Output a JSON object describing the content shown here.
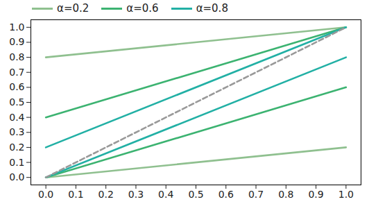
{
  "chart_data": {
    "type": "line",
    "x": [
      0,
      1
    ],
    "series": [
      {
        "name": "α=0.2",
        "color": "#8fc08f",
        "values": [
          0.8,
          1.0
        ]
      },
      {
        "name": "α=0.2",
        "color": "#8fc08f",
        "values": [
          0.0,
          0.2
        ]
      },
      {
        "name": "α=0.6",
        "color": "#3cb371",
        "values": [
          0.4,
          1.0
        ]
      },
      {
        "name": "α=0.6",
        "color": "#3cb371",
        "values": [
          0.0,
          0.6
        ]
      },
      {
        "name": "α=0.8",
        "color": "#22b0a5",
        "values": [
          0.2,
          1.0
        ]
      },
      {
        "name": "α=0.8",
        "color": "#22b0a5",
        "values": [
          0.0,
          0.8
        ]
      },
      {
        "color": "#999999",
        "line_style": "dashed",
        "values": [
          0.0,
          1.0
        ]
      }
    ],
    "xlim": [
      -0.05,
      1.05
    ],
    "ylim": [
      -0.05,
      1.05
    ],
    "xticks": [
      {
        "value": 0,
        "label": "0.0"
      },
      {
        "value": 0.1,
        "label": "0.1"
      },
      {
        "value": 0.2,
        "label": "0.2"
      },
      {
        "value": 0.3,
        "label": "0.3"
      },
      {
        "value": 0.4,
        "label": "0.4"
      },
      {
        "value": 0.5,
        "label": "0.5"
      },
      {
        "value": 0.6,
        "label": "0.6"
      },
      {
        "value": 0.7,
        "label": "0.7"
      },
      {
        "value": 0.8,
        "label": "0.8"
      },
      {
        "value": 0.9,
        "label": "0.9"
      },
      {
        "value": 1,
        "label": "1.0"
      }
    ],
    "yticks": [
      {
        "value": 0,
        "label": "0.0"
      },
      {
        "value": 0.1,
        "label": "0.1"
      },
      {
        "value": 0.2,
        "label": "0.2"
      },
      {
        "value": 0.3,
        "label": "0.3"
      },
      {
        "value": 0.4,
        "label": "0.4"
      },
      {
        "value": 0.5,
        "label": "0.5"
      },
      {
        "value": 0.6,
        "label": "0.6"
      },
      {
        "value": 0.7,
        "label": "0.7"
      },
      {
        "value": 0.8,
        "label": "0.8"
      },
      {
        "value": 0.9,
        "label": "0.9"
      },
      {
        "value": 1,
        "label": "1.0"
      }
    ],
    "legend": "upper left",
    "grid": false
  }
}
